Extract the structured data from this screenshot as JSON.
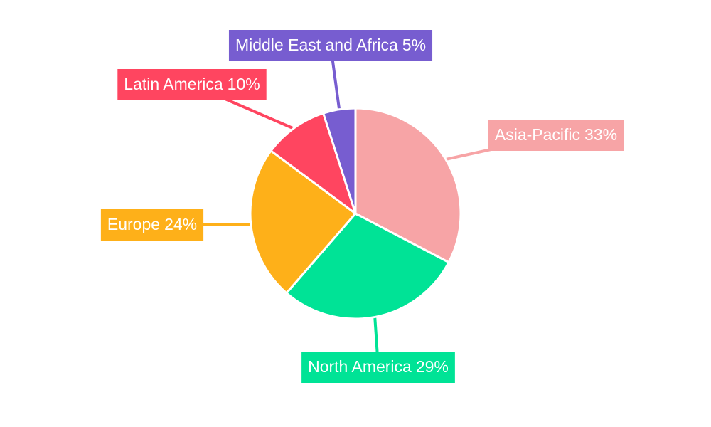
{
  "chart_data": {
    "type": "pie",
    "categories": [
      "Asia-Pacific",
      "North America",
      "Europe",
      "Latin America",
      "Middle East and Africa"
    ],
    "values": [
      33,
      29,
      24,
      10,
      5
    ],
    "value_labels": [
      "33%",
      "29%",
      "24%",
      "10%",
      "5%"
    ],
    "colors": [
      "#f7a4a6",
      "#00e396",
      "#feb019",
      "#ff4560",
      "#775dd0"
    ]
  }
}
